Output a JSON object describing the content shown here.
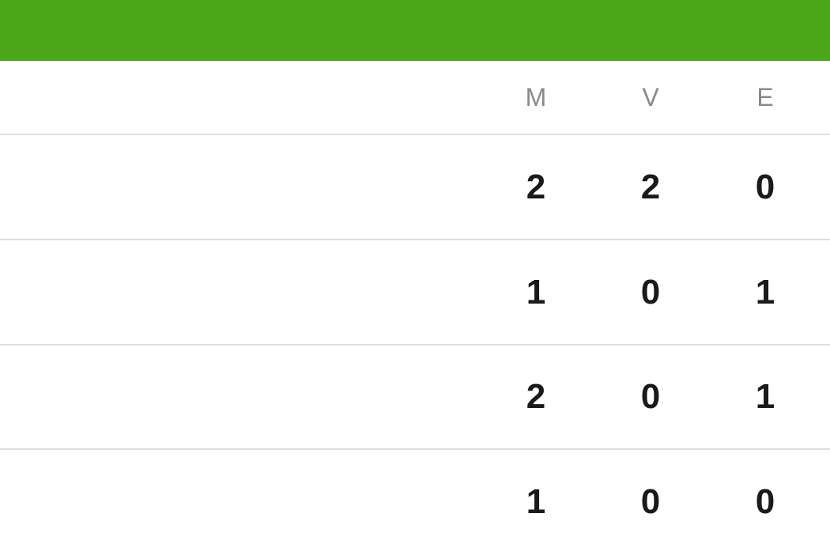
{
  "colors": {
    "header_bar": "#4ba618"
  },
  "table": {
    "columns": [
      "M",
      "V",
      "E"
    ],
    "rows": [
      [
        "2",
        "2",
        "0"
      ],
      [
        "1",
        "0",
        "1"
      ],
      [
        "2",
        "0",
        "1"
      ],
      [
        "1",
        "0",
        "0"
      ]
    ]
  }
}
